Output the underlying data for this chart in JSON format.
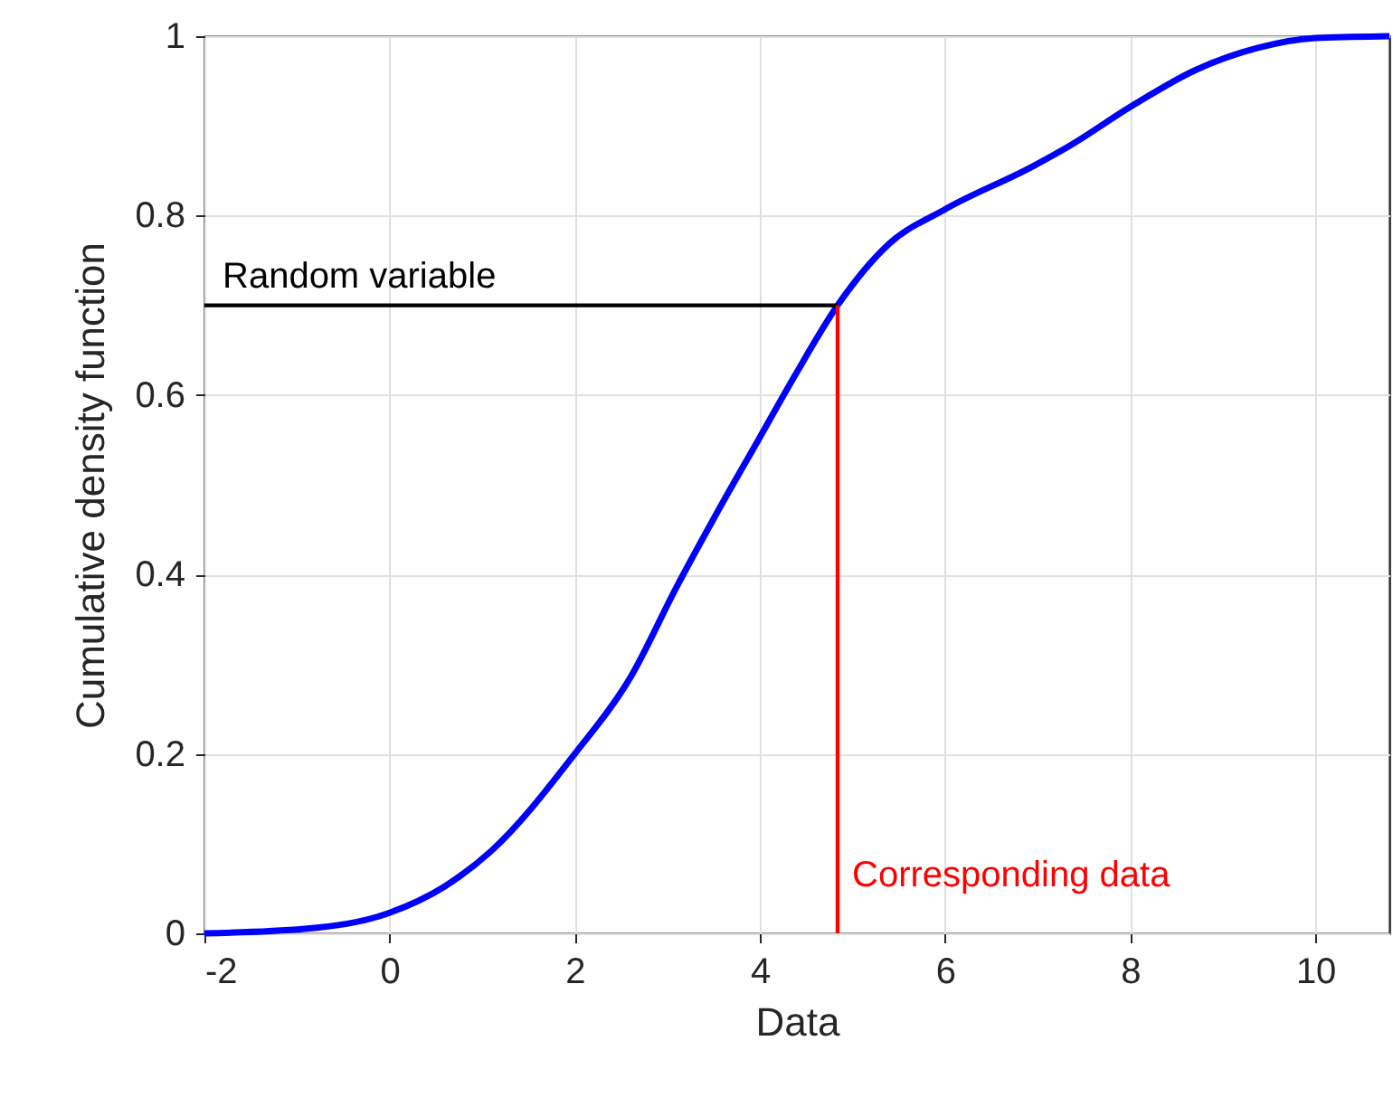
{
  "chart_data": {
    "type": "line",
    "xlabel": "Data",
    "ylabel": "Cumulative density function",
    "xlim": [
      -2,
      10.8
    ],
    "ylim": [
      0,
      1
    ],
    "xticks": [
      -2,
      0,
      2,
      4,
      6,
      8,
      10
    ],
    "yticks": [
      0,
      0.2,
      0.4,
      0.6,
      0.8,
      1
    ],
    "grid": true,
    "series": [
      {
        "color": "#0000ff",
        "x": [
          -2,
          -0.92,
          0,
          0.59,
          1.1,
          2,
          2.6,
          3.1,
          3.5,
          4,
          4.38,
          4.84,
          5.39,
          6,
          6.95,
          7.35,
          8,
          8.7,
          9.38,
          10,
          10.8
        ],
        "values": [
          0,
          0.005,
          0.023,
          0.052,
          0.092,
          0.2,
          0.285,
          0.386,
          0.462,
          0.553,
          0.622,
          0.7,
          0.768,
          0.807,
          0.855,
          0.878,
          0.921,
          0.962,
          0.987,
          0.998,
          1
        ]
      },
      {
        "name": "Random variable",
        "color": "#000000",
        "x": [
          -2,
          4.84
        ],
        "values": [
          0.7,
          0.7
        ]
      },
      {
        "name": "Corresponding data",
        "color": "#ff0000",
        "x": [
          4.84,
          4.84
        ],
        "values": [
          0,
          0.7
        ]
      }
    ]
  }
}
